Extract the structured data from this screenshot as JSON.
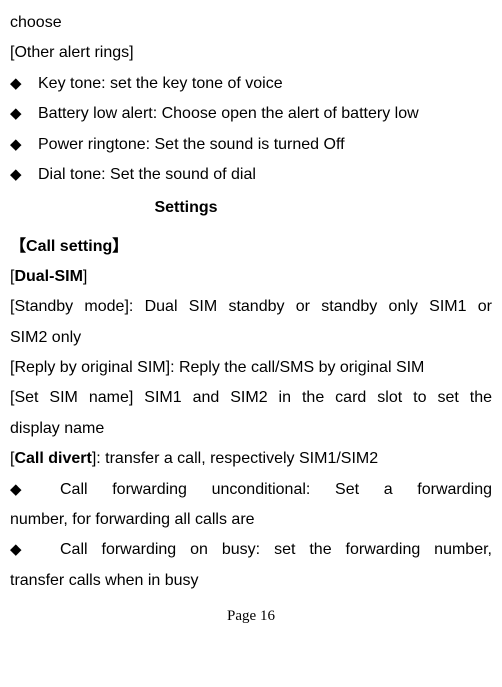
{
  "p1": "choose",
  "p2": "[Other alert rings]",
  "b1": "Key tone: set the key tone of voice",
  "b2": "Battery low alert: Choose open the alert of battery low",
  "b3": "Power ringtone: Set the sound is turned Off",
  "b4": "Dial tone: Set the sound of dial",
  "title": "Settings",
  "s1_left": "【",
  "s1_mid": "Call setting",
  "s1_right": "】",
  "s2_open": "[",
  "s2_label": "Dual-SIM",
  "s2_close": "]",
  "l1a": "[Standby mode]: Dual SIM standby or standby only SIM1 or",
  "l1b": "SIM2 only",
  "l2": "[Reply by original SIM]: Reply the call/SMS by original SIM",
  "l3a": "[Set SIM name] SIM1 and SIM2 in the card slot to set the",
  "l3b": "display name",
  "cd_open": "[",
  "cd_label": "Call divert",
  "cd_rest": "]: transfer a call, respectively SIM1/SIM2",
  "bb1a": "Call forwarding unconditional: Set a forwarding",
  "bb1b": "number, for forwarding all calls are",
  "bb2a": "Call forwarding on busy: set the forwarding number,",
  "bb2b": "transfer calls when in busy",
  "footer": "Page 16",
  "diamond_char": "◆",
  "colors": {
    "bg": "#ffffff",
    "text": "#000000"
  }
}
